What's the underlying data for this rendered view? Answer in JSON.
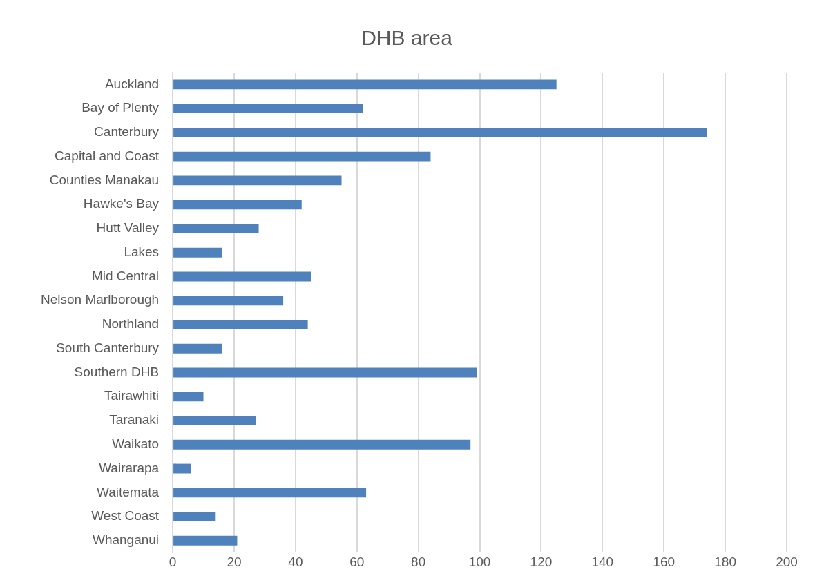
{
  "chart_data": {
    "type": "bar",
    "orientation": "horizontal",
    "title": "DHB area",
    "categories": [
      "Auckland",
      "Bay of Plenty",
      "Canterbury",
      "Capital and Coast",
      "Counties Manakau",
      "Hawke's Bay",
      "Hutt Valley",
      "Lakes",
      "Mid Central",
      "Nelson Marlborough",
      "Northland",
      "South Canterbury",
      "Southern DHB",
      "Tairawhiti",
      "Taranaki",
      "Waikato",
      "Wairarapa",
      "Waitemata",
      "West Coast",
      "Whanganui"
    ],
    "values": [
      125,
      62,
      174,
      84,
      55,
      42,
      28,
      16,
      45,
      36,
      44,
      16,
      99,
      10,
      27,
      97,
      6,
      63,
      14,
      21
    ],
    "color": "#4f81bd",
    "xlim": [
      0,
      200
    ],
    "xticks": [
      0,
      20,
      40,
      60,
      80,
      100,
      120,
      140,
      160,
      180,
      200
    ],
    "grid": "x",
    "legend": false
  }
}
